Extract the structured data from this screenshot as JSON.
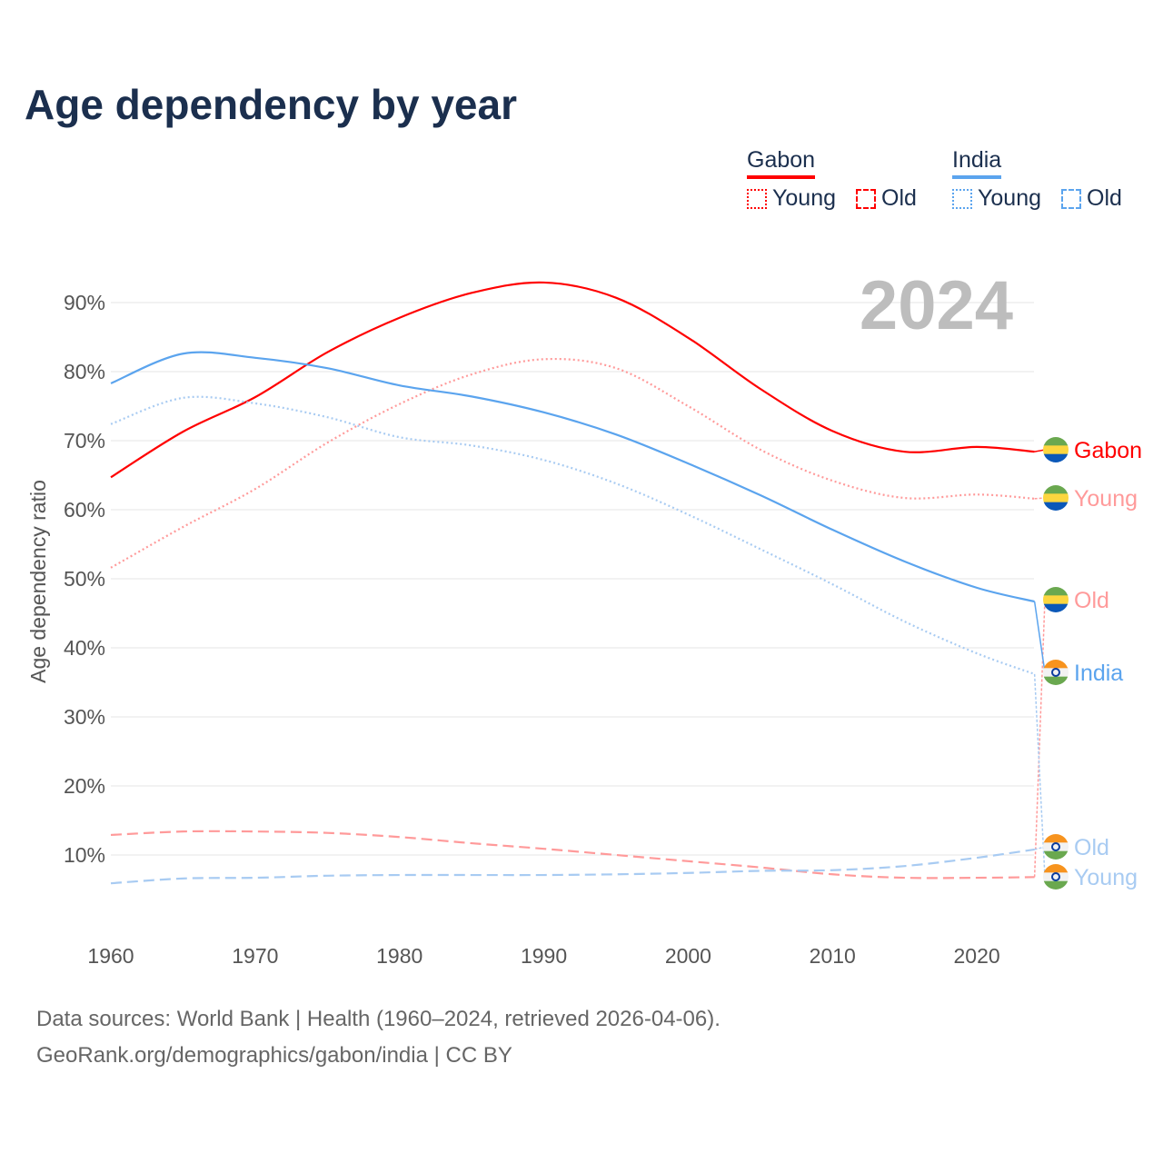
{
  "title": "Age dependency by year",
  "legend": {
    "groups": [
      {
        "name": "Gabon",
        "color": "#ff0000",
        "young": "Young",
        "old": "Old"
      },
      {
        "name": "India",
        "color": "#5ba4ee",
        "young": "Young",
        "old": "Old"
      }
    ]
  },
  "year_label": "2024",
  "source_line1": "Data sources: World Bank | Health (1960–2024, retrieved 2026-04-06).",
  "source_line2": "GeoRank.org/demographics/gabon/india | CC BY",
  "chart_data": {
    "type": "line",
    "title": "Age dependency by year",
    "xlabel": "",
    "ylabel": "Age dependency ratio",
    "xlim": [
      1960,
      2024
    ],
    "ylim": [
      0,
      95
    ],
    "x_ticks": [
      1960,
      1970,
      1980,
      1990,
      2000,
      2010,
      2020
    ],
    "y_ticks": [
      "10%",
      "20%",
      "30%",
      "40%",
      "50%",
      "60%",
      "70%",
      "80%",
      "90%"
    ],
    "y_tick_values": [
      10,
      20,
      30,
      40,
      50,
      60,
      70,
      80,
      90
    ],
    "grid": true,
    "x": [
      1960,
      1965,
      1970,
      1975,
      1980,
      1985,
      1990,
      1995,
      2000,
      2005,
      2010,
      2015,
      2020,
      2024
    ],
    "series": [
      {
        "name": "Gabon",
        "end_label": "Gabon",
        "country": "gabon",
        "color": "#ff0000",
        "style": "solid",
        "values": [
          64.7,
          71.3,
          76.3,
          82.8,
          87.8,
          91.4,
          92.9,
          90.7,
          84.9,
          77.5,
          71.4,
          68.4,
          69.1,
          68.4
        ]
      },
      {
        "name": "Gabon Young",
        "end_label": "Young",
        "country": "gabon",
        "color": "#ff9a9a",
        "style": "dotted",
        "values": [
          51.6,
          57.5,
          63.0,
          69.7,
          75.3,
          79.6,
          81.8,
          80.5,
          75.0,
          68.7,
          64.2,
          61.7,
          62.2,
          61.6
        ]
      },
      {
        "name": "Gabon Old",
        "end_label": "Old",
        "country": "gabon",
        "color": "#ff9a9a",
        "style": "dashed",
        "values": [
          12.9,
          13.4,
          13.4,
          13.2,
          12.6,
          11.7,
          10.9,
          10.0,
          9.1,
          8.2,
          7.2,
          6.7,
          6.7,
          6.8
        ]
      },
      {
        "name": "India",
        "end_label": "India",
        "country": "india",
        "color": "#5ba4ee",
        "style": "solid",
        "values": [
          78.3,
          82.6,
          82.0,
          80.5,
          78.0,
          76.4,
          74.1,
          70.9,
          66.7,
          62.1,
          57.1,
          52.5,
          48.7,
          46.7
        ]
      },
      {
        "name": "India Young",
        "end_label": "Young",
        "country": "india",
        "color": "#a8cbf2",
        "style": "dotted",
        "values": [
          72.4,
          76.2,
          75.4,
          73.4,
          70.5,
          69.3,
          67.2,
          63.8,
          59.3,
          54.3,
          49.2,
          43.8,
          39.2,
          36.2
        ]
      },
      {
        "name": "India Old",
        "end_label": "Old",
        "country": "india",
        "color": "#a8cbf2",
        "style": "dashed",
        "values": [
          5.9,
          6.6,
          6.7,
          7.0,
          7.1,
          7.1,
          7.1,
          7.2,
          7.4,
          7.7,
          7.8,
          8.4,
          9.6,
          10.8
        ]
      }
    ]
  }
}
